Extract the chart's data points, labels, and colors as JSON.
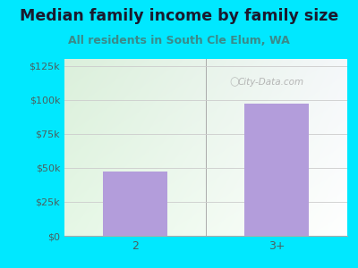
{
  "title": "Median family income by family size",
  "subtitle": "All residents in South Cle Elum, WA",
  "categories": [
    "2",
    "3+"
  ],
  "values": [
    47000,
    97000
  ],
  "bar_color": "#b39ddb",
  "ylim": [
    0,
    130000
  ],
  "yticks": [
    0,
    25000,
    50000,
    75000,
    100000,
    125000
  ],
  "ytick_labels": [
    "$0",
    "$25k",
    "$50k",
    "$75k",
    "$100k",
    "$125k"
  ],
  "bg_outer": "#00e8ff",
  "title_color": "#1a1a2e",
  "subtitle_color": "#3a8a8a",
  "tick_color": "#4a6060",
  "watermark": "City-Data.com",
  "title_fontsize": 12.5,
  "subtitle_fontsize": 9.0,
  "tick_fontsize": 8.0,
  "gradient_top": "#d6edd6",
  "gradient_bottom": "#f8fff8",
  "gradient_right": "#f0f0f8"
}
